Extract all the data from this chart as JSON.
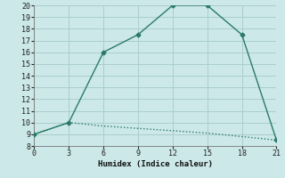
{
  "xlabel": "Humidex (Indice chaleur)",
  "line1_x": [
    0,
    3,
    6,
    9,
    12,
    15,
    18,
    21
  ],
  "line1_y": [
    9,
    10,
    16,
    17.5,
    20,
    20,
    17.5,
    8.5
  ],
  "line2_x": [
    0,
    3,
    6,
    9,
    12,
    15,
    18,
    21
  ],
  "line2_y": [
    9,
    10,
    9.7,
    9.5,
    9.3,
    9.1,
    8.8,
    8.5
  ],
  "line_color": "#2a7a6a",
  "bg_color": "#cce8e8",
  "grid_color": "#aacece",
  "xlim": [
    0,
    21
  ],
  "ylim": [
    8,
    20
  ],
  "xticks": [
    0,
    3,
    6,
    9,
    12,
    15,
    18,
    21
  ],
  "yticks": [
    8,
    9,
    10,
    11,
    12,
    13,
    14,
    15,
    16,
    17,
    18,
    19,
    20
  ],
  "marker": "D",
  "markersize": 2.5,
  "linewidth": 1.0,
  "tick_fontsize": 6.0,
  "xlabel_fontsize": 6.5
}
